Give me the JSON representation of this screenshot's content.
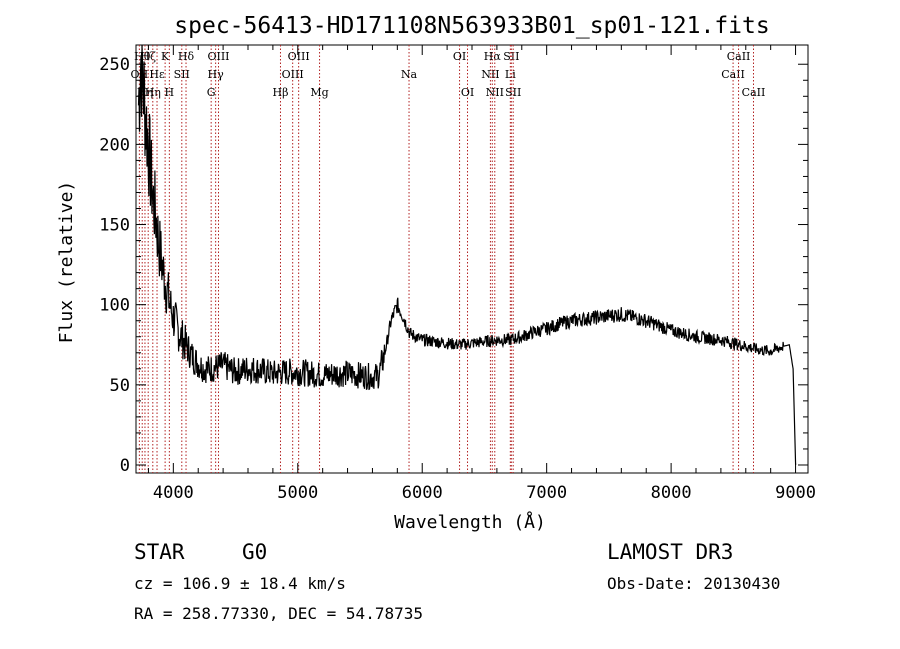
{
  "chart_data": {
    "type": "line",
    "title": "spec-56413-HD171108N563933B01_sp01-121.fits",
    "xlabel": "Wavelength (Å)",
    "ylabel": "Flux (relative)",
    "xlim": [
      3700,
      9100
    ],
    "ylim": [
      -5,
      262
    ],
    "xticks": [
      4000,
      5000,
      6000,
      7000,
      8000,
      9000
    ],
    "yticks": [
      0,
      50,
      100,
      150,
      200,
      250
    ],
    "grid": false,
    "line_color": "#000000",
    "marker_color": "#b22222",
    "series": [
      {
        "x": [
          3720,
          3740,
          3760,
          3780,
          3800,
          3820,
          3840,
          3860,
          3880,
          3900,
          3920,
          3940,
          3960,
          3980,
          4000,
          4050,
          4100,
          4150,
          4200,
          4250,
          4300,
          4400,
          4500,
          4600,
          4700,
          4800,
          4900,
          5000,
          5100,
          5200,
          5300,
          5400,
          5500,
          5600,
          5650,
          5700,
          5750,
          5800,
          5850,
          5900,
          6000,
          6100,
          6200,
          6300,
          6400,
          6500,
          6600,
          6700,
          6800,
          6900,
          7000,
          7100,
          7200,
          7300,
          7400,
          7500,
          7600,
          7700,
          7800,
          7900,
          8000,
          8100,
          8200,
          8300,
          8400,
          8500,
          8600,
          8700,
          8800,
          8900,
          8950,
          8980,
          9000
        ],
        "y": [
          225,
          255,
          235,
          215,
          200,
          180,
          165,
          155,
          140,
          130,
          120,
          112,
          105,
          98,
          92,
          82,
          75,
          68,
          63,
          60,
          60,
          62,
          58,
          60,
          59,
          57,
          58,
          58,
          57,
          56,
          57,
          57,
          56,
          55,
          56,
          70,
          90,
          100,
          92,
          82,
          78,
          77,
          76,
          75,
          76,
          77,
          78,
          78,
          80,
          83,
          85,
          88,
          90,
          91,
          92,
          93,
          94,
          92,
          90,
          87,
          84,
          82,
          80,
          79,
          78,
          76,
          74,
          72,
          71,
          74,
          75,
          60,
          0
        ]
      }
    ],
    "markers": [
      {
        "x": 3727,
        "label": "OII",
        "row": 1
      },
      {
        "x": 3750,
        "label": "Hθ",
        "row": 0
      },
      {
        "x": 3772,
        "label": "Hη",
        "row": 2
      },
      {
        "x": 3798,
        "label": "Hζ",
        "row": 0
      },
      {
        "x": 3835,
        "label": "Hη",
        "row": 2
      },
      {
        "x": 3869,
        "label": "Hε",
        "row": 1
      },
      {
        "x": 3934,
        "label": "K",
        "row": 0
      },
      {
        "x": 3968,
        "label": "H",
        "row": 2
      },
      {
        "x": 4068,
        "label": "SII",
        "row": 1
      },
      {
        "x": 4102,
        "label": "Hδ",
        "row": 0
      },
      {
        "x": 4304,
        "label": "G",
        "row": 2
      },
      {
        "x": 4340,
        "label": "Hγ",
        "row": 1
      },
      {
        "x": 4363,
        "label": "OIII",
        "row": 0
      },
      {
        "x": 4861,
        "label": "Hβ",
        "row": 2
      },
      {
        "x": 4959,
        "label": "OIII",
        "row": 1
      },
      {
        "x": 5007,
        "label": "OIII",
        "row": 0
      },
      {
        "x": 5175,
        "label": "Mg",
        "row": 2
      },
      {
        "x": 5894,
        "label": "Na",
        "row": 1
      },
      {
        "x": 6300,
        "label": "OI",
        "row": 0
      },
      {
        "x": 6364,
        "label": "OI",
        "row": 2
      },
      {
        "x": 6548,
        "label": "NII",
        "row": 1
      },
      {
        "x": 6563,
        "label": "Hα",
        "row": 0
      },
      {
        "x": 6583,
        "label": "NII",
        "row": 2
      },
      {
        "x": 6708,
        "label": "Li",
        "row": 1
      },
      {
        "x": 6716,
        "label": "SII",
        "row": 0
      },
      {
        "x": 6731,
        "label": "SII",
        "row": 2
      },
      {
        "x": 8498,
        "label": "CaII",
        "row": 1
      },
      {
        "x": 8542,
        "label": "CaII",
        "row": 0
      },
      {
        "x": 8662,
        "label": "CaII",
        "row": 2
      }
    ]
  },
  "info": {
    "object_class": "STAR",
    "subclass": "G0",
    "survey": "LAMOST DR3",
    "redshift": "cz = 106.9 ± 18.4 km/s",
    "obs_date": "Obs-Date: 20130430",
    "coords": "RA = 258.77330, DEC =  54.78735"
  }
}
